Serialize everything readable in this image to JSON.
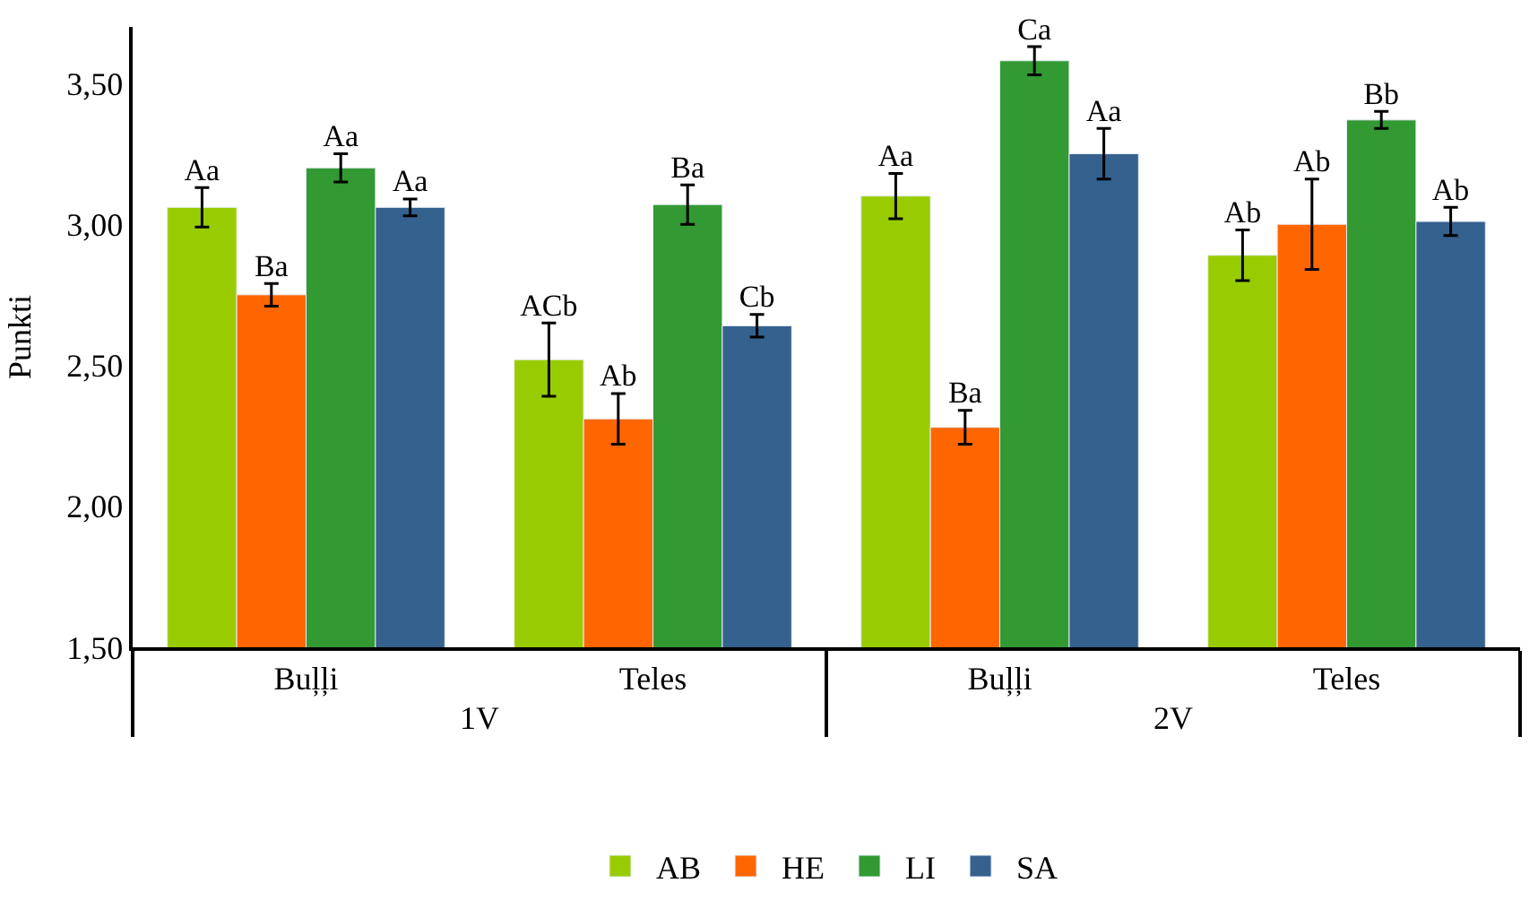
{
  "chart_data": {
    "type": "bar",
    "ylabel": "Punkti",
    "categories": [
      "Buļļi",
      "Teles",
      "Buļļi",
      "Teles"
    ],
    "annotations": [
      "1V",
      "2V"
    ],
    "ylim": [
      1.5,
      3.7
    ],
    "yticks": [
      {
        "value": 1.5,
        "label": "1,50"
      },
      {
        "value": 2.0,
        "label": "2,00"
      },
      {
        "value": 2.5,
        "label": "2,50"
      },
      {
        "value": 3.0,
        "label": "3,00"
      },
      {
        "value": 3.5,
        "label": "3,50"
      }
    ],
    "grid": false,
    "legend": "bottom",
    "series": [
      {
        "name": "AB",
        "color": "#99cc00",
        "values": [
          3.06,
          2.52,
          3.1,
          2.89
        ],
        "errors": [
          0.07,
          0.13,
          0.08,
          0.09
        ],
        "value_labels": [
          "Aa",
          "ACb",
          "Aa",
          "Ab"
        ]
      },
      {
        "name": "HE",
        "color": "#ff6600",
        "values": [
          2.75,
          2.31,
          2.28,
          3.0
        ],
        "errors": [
          0.04,
          0.09,
          0.06,
          0.16
        ],
        "value_labels": [
          "Ba",
          "Ab",
          "Ba",
          "Ab"
        ]
      },
      {
        "name": "LI",
        "color": "#339933",
        "values": [
          3.2,
          3.07,
          3.58,
          3.37
        ],
        "errors": [
          0.05,
          0.07,
          0.05,
          0.03
        ],
        "value_labels": [
          "Aa",
          "Ba",
          "Ca",
          "Bb"
        ]
      },
      {
        "name": "SA",
        "color": "#35618f",
        "values": [
          3.06,
          2.64,
          3.25,
          3.01
        ],
        "errors": [
          0.03,
          0.04,
          0.09,
          0.05
        ],
        "value_labels": [
          "Aa",
          "Cb",
          "Aa",
          "Ab"
        ]
      }
    ]
  }
}
